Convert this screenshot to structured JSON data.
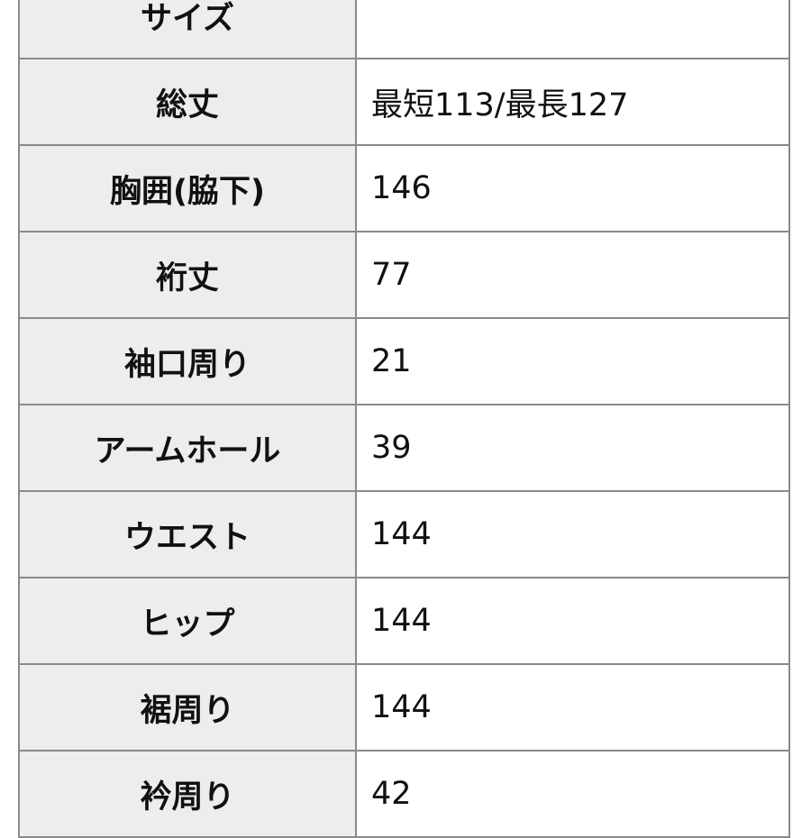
{
  "rows": [
    {
      "label": "サイズ",
      "value": ""
    },
    {
      "label": "総丈",
      "value": "最短113/最長127"
    },
    {
      "label": "胸囲(脇下)",
      "value": "146"
    },
    {
      "label": "裄丈",
      "value": "77"
    },
    {
      "label": "袖口周り",
      "value": "21"
    },
    {
      "label": "アームホール",
      "value": "39"
    },
    {
      "label": "ウエスト",
      "value": "144"
    },
    {
      "label": "ヒップ",
      "value": "144"
    },
    {
      "label": "裾周り",
      "value": "144"
    },
    {
      "label": "衿周り",
      "value": "42"
    }
  ]
}
